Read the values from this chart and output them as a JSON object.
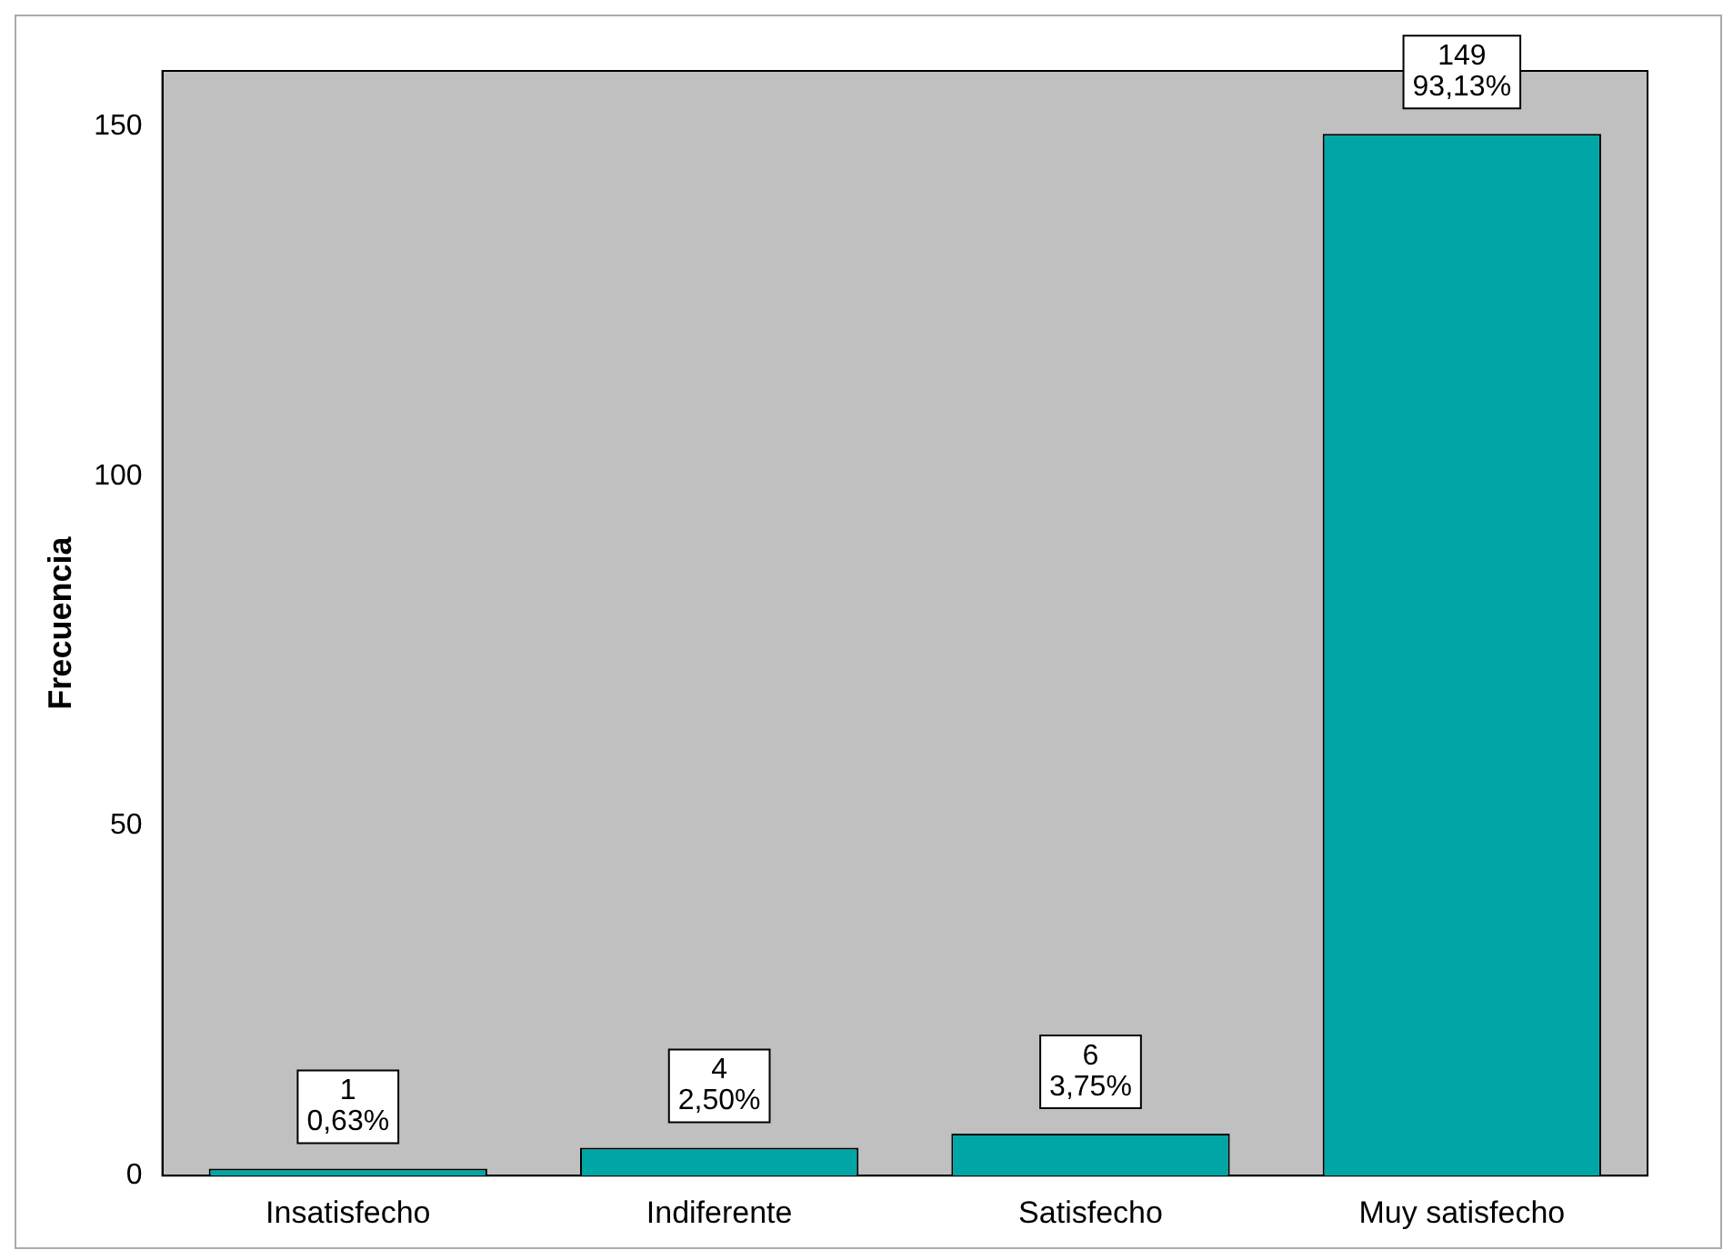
{
  "chart_data": {
    "type": "bar",
    "ylabel": "Frecuencia",
    "categories": [
      "Insatisfecho",
      "Indiferente",
      "Satisfecho",
      "Muy satisfecho"
    ],
    "values": [
      1,
      4,
      6,
      149
    ],
    "color": "#00a6a6",
    "value_labels": [
      "1\n0,63%",
      "4\n2,50%",
      "6\n3,75%",
      "149\n93,13%"
    ],
    "ylim": [
      0,
      158
    ],
    "yticks": [
      0,
      50,
      100,
      150
    ],
    "grid": false,
    "legend": false
  }
}
